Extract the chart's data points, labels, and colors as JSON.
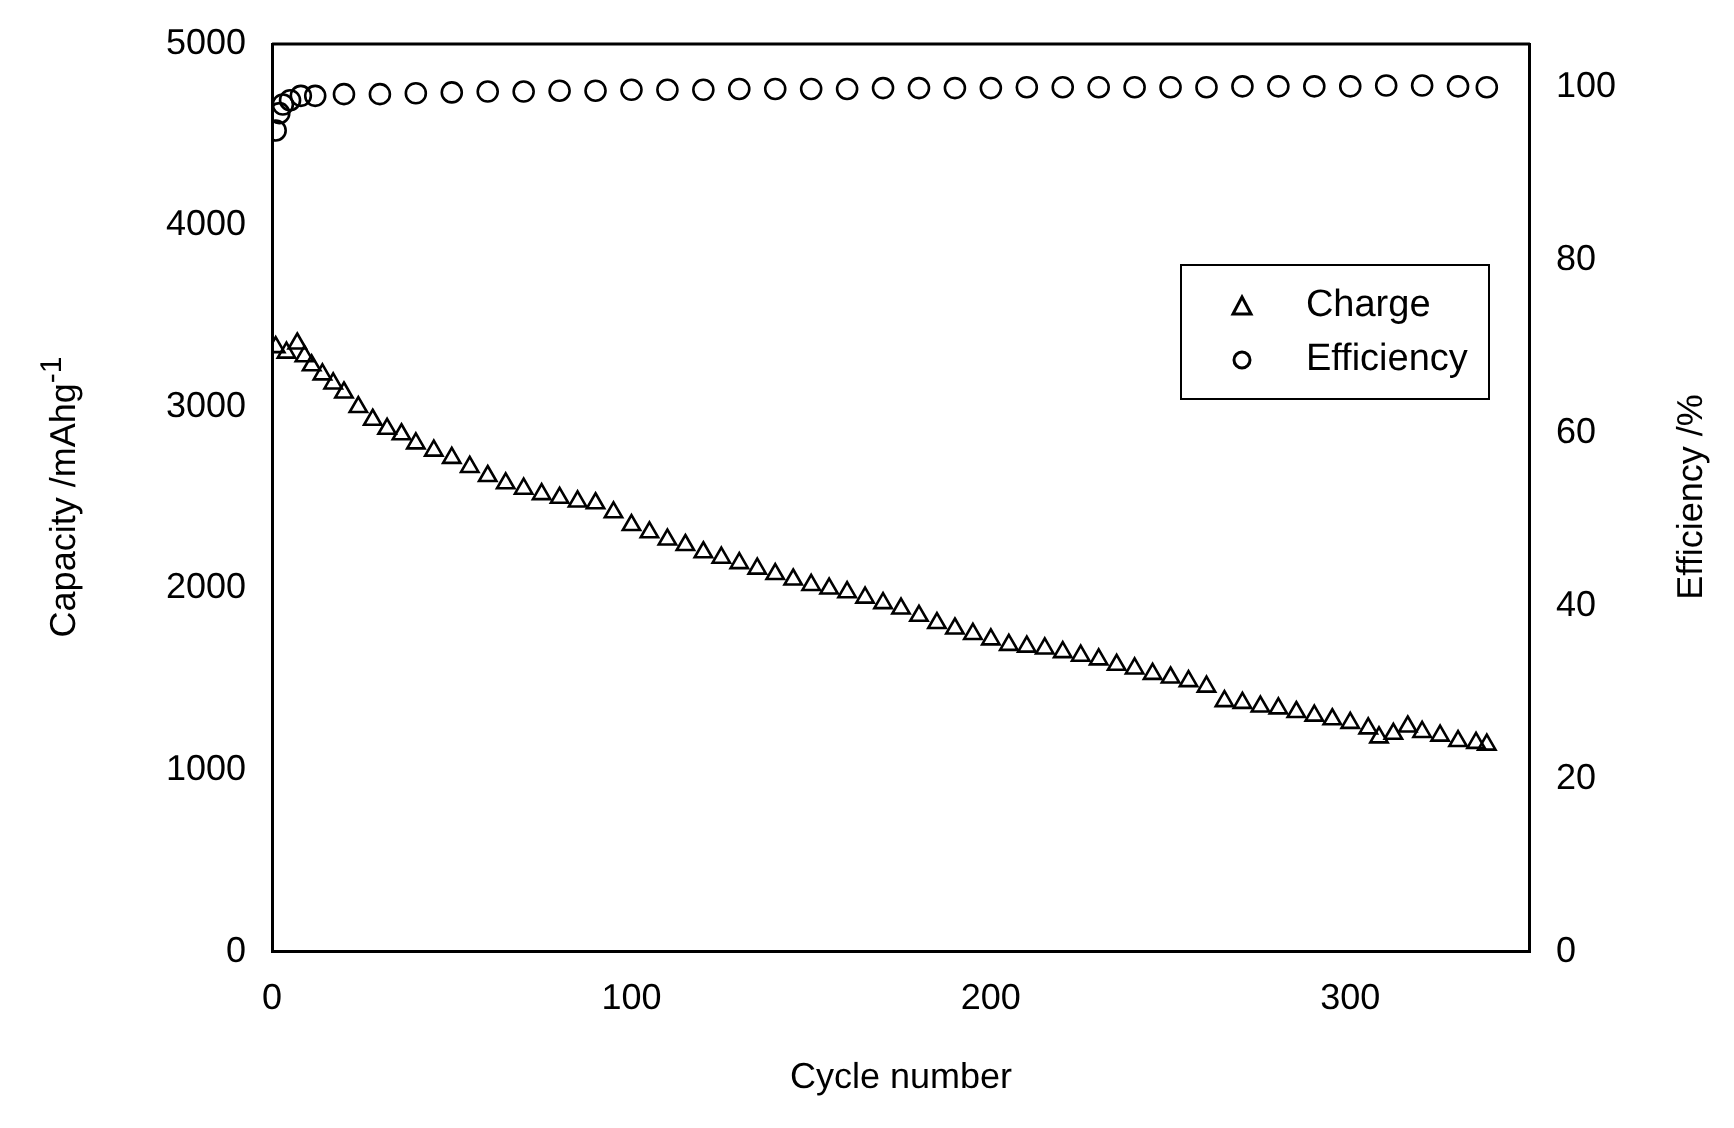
{
  "chart_data": {
    "type": "scatter",
    "xlabel": "Cycle number",
    "ylabel": "Capacity /mAhg$^{-1}$",
    "y2label": "Efficiency /%",
    "xlim": [
      0,
      350
    ],
    "xticks": [
      0,
      100,
      200,
      300
    ],
    "ylim": [
      0,
      5000
    ],
    "yticks": [
      0,
      1000,
      2000,
      3000,
      4000,
      5000
    ],
    "y2lim": [
      0,
      105
    ],
    "y2ticks": [
      0,
      20,
      40,
      60,
      80,
      100
    ],
    "legend": "right",
    "grid": false,
    "series": [
      {
        "name": "Charge",
        "color": "#000000",
        "marker": "triangle",
        "x": [
          1,
          4,
          7,
          9,
          11,
          14,
          17,
          20,
          24,
          28,
          32,
          36,
          40,
          45,
          50,
          55,
          60,
          65,
          70,
          75,
          80,
          85,
          90,
          95,
          100,
          105,
          110,
          115,
          120,
          125,
          130,
          135,
          140,
          145,
          150,
          155,
          160,
          165,
          170,
          175,
          180,
          185,
          190,
          195,
          200,
          205,
          210,
          215,
          220,
          225,
          230,
          235,
          240,
          245,
          250,
          255,
          260,
          265,
          270,
          275,
          280,
          285,
          290,
          295,
          300,
          305,
          308,
          312,
          316,
          320,
          325,
          330,
          335,
          338
        ],
        "values": [
          3330,
          3300,
          3350,
          3280,
          3230,
          3180,
          3130,
          3080,
          3000,
          2930,
          2880,
          2850,
          2800,
          2760,
          2720,
          2670,
          2620,
          2580,
          2550,
          2520,
          2500,
          2480,
          2470,
          2420,
          2350,
          2310,
          2270,
          2240,
          2200,
          2170,
          2140,
          2110,
          2080,
          2050,
          2020,
          2000,
          1980,
          1950,
          1920,
          1890,
          1850,
          1810,
          1780,
          1750,
          1720,
          1690,
          1680,
          1670,
          1650,
          1630,
          1610,
          1580,
          1560,
          1530,
          1510,
          1490,
          1460,
          1380,
          1370,
          1350,
          1340,
          1320,
          1300,
          1280,
          1260,
          1230,
          1180,
          1200,
          1240,
          1210,
          1190,
          1160,
          1150,
          1140
        ]
      },
      {
        "name": "Efficiency",
        "color": "#000000",
        "marker": "circle",
        "axis": "y2",
        "x": [
          1,
          2,
          3,
          5,
          8,
          12,
          20,
          30,
          40,
          50,
          60,
          70,
          80,
          90,
          100,
          110,
          120,
          130,
          140,
          150,
          160,
          170,
          180,
          190,
          200,
          210,
          220,
          230,
          240,
          250,
          260,
          270,
          280,
          290,
          300,
          310,
          320,
          330,
          338
        ],
        "values": [
          95,
          97,
          98,
          98.5,
          99,
          99,
          99.2,
          99.2,
          99.3,
          99.4,
          99.5,
          99.5,
          99.6,
          99.6,
          99.7,
          99.7,
          99.7,
          99.8,
          99.8,
          99.8,
          99.8,
          99.9,
          99.9,
          99.9,
          99.9,
          100,
          100,
          100,
          100,
          100,
          100,
          100.1,
          100.1,
          100.1,
          100.1,
          100.2,
          100.2,
          100.1,
          100
        ]
      }
    ]
  }
}
